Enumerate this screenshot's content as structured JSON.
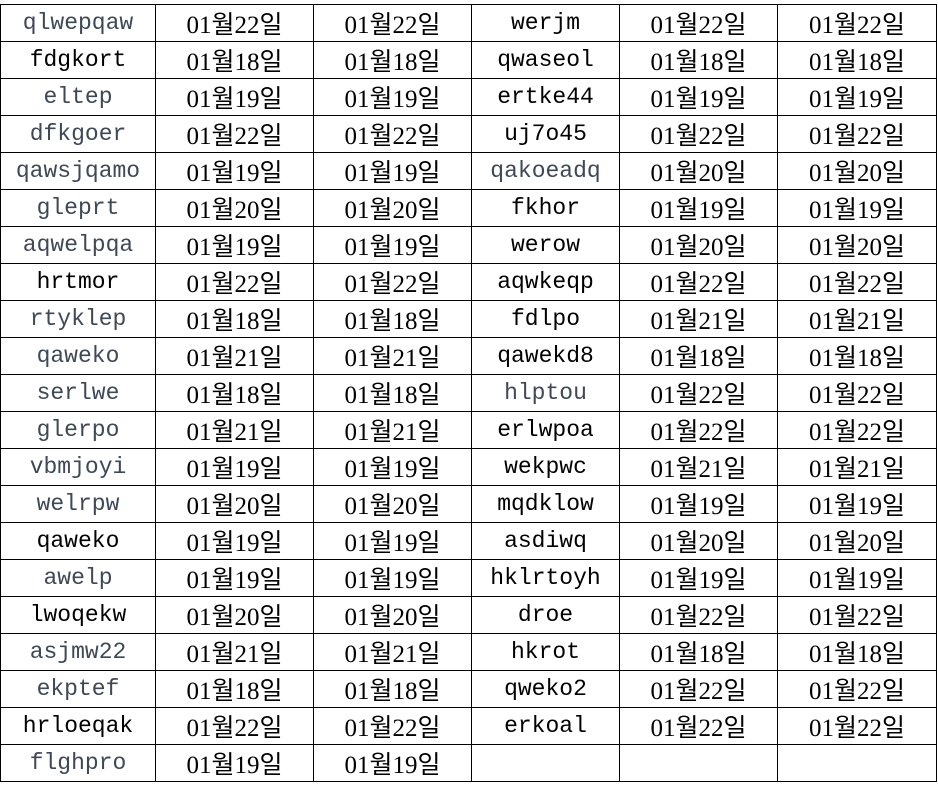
{
  "colors": {
    "name_gray": "#3e4856",
    "text": "#000000",
    "grid": "#000000"
  },
  "rows": [
    {
      "left": {
        "name": "qlwepqaw",
        "gray": true,
        "d1": "01월22일",
        "d2": "01월22일"
      },
      "right": {
        "name": "werjm",
        "gray": false,
        "d1": "01월22일",
        "d2": "01월22일"
      }
    },
    {
      "left": {
        "name": "fdgkort",
        "gray": false,
        "d1": "01월18일",
        "d2": "01월18일"
      },
      "right": {
        "name": "qwaseol",
        "gray": false,
        "d1": "01월18일",
        "d2": "01월18일"
      }
    },
    {
      "left": {
        "name": "eltep",
        "gray": true,
        "d1": "01월19일",
        "d2": "01월19일"
      },
      "right": {
        "name": "ertke44",
        "gray": false,
        "d1": "01월19일",
        "d2": "01월19일"
      }
    },
    {
      "left": {
        "name": "dfkgoer",
        "gray": true,
        "d1": "01월22일",
        "d2": "01월22일"
      },
      "right": {
        "name": "uj7o45",
        "gray": false,
        "d1": "01월22일",
        "d2": "01월22일"
      }
    },
    {
      "left": {
        "name": "qawsjqamo",
        "gray": true,
        "d1": "01월19일",
        "d2": "01월19일"
      },
      "right": {
        "name": "qakoeadq",
        "gray": true,
        "d1": "01월20일",
        "d2": "01월20일"
      }
    },
    {
      "left": {
        "name": "gleprt",
        "gray": true,
        "d1": "01월20일",
        "d2": "01월20일"
      },
      "right": {
        "name": "fkhor",
        "gray": false,
        "d1": "01월19일",
        "d2": "01월19일"
      }
    },
    {
      "left": {
        "name": "aqwelpqa",
        "gray": true,
        "d1": "01월19일",
        "d2": "01월19일"
      },
      "right": {
        "name": "werow",
        "gray": false,
        "d1": "01월20일",
        "d2": "01월20일"
      }
    },
    {
      "left": {
        "name": "hrtmor",
        "gray": false,
        "d1": "01월22일",
        "d2": "01월22일"
      },
      "right": {
        "name": "aqwkeqp",
        "gray": false,
        "d1": "01월22일",
        "d2": "01월22일"
      }
    },
    {
      "left": {
        "name": "rtyklep",
        "gray": true,
        "d1": "01월18일",
        "d2": "01월18일"
      },
      "right": {
        "name": "fdlpo",
        "gray": false,
        "d1": "01월21일",
        "d2": "01월21일"
      }
    },
    {
      "left": {
        "name": "qaweko",
        "gray": true,
        "d1": "01월21일",
        "d2": "01월21일"
      },
      "right": {
        "name": "qawekd8",
        "gray": false,
        "d1": "01월18일",
        "d2": "01월18일"
      }
    },
    {
      "left": {
        "name": "serlwe",
        "gray": true,
        "d1": "01월18일",
        "d2": "01월18일"
      },
      "right": {
        "name": "hlptou",
        "gray": true,
        "d1": "01월22일",
        "d2": "01월22일"
      }
    },
    {
      "left": {
        "name": "glerpo",
        "gray": true,
        "d1": "01월21일",
        "d2": "01월21일"
      },
      "right": {
        "name": "erlwpoa",
        "gray": false,
        "d1": "01월22일",
        "d2": "01월22일"
      }
    },
    {
      "left": {
        "name": "vbmjoyi",
        "gray": true,
        "d1": "01월19일",
        "d2": "01월19일"
      },
      "right": {
        "name": "wekpwc",
        "gray": false,
        "d1": "01월21일",
        "d2": "01월21일"
      }
    },
    {
      "left": {
        "name": "welrpw",
        "gray": true,
        "d1": "01월20일",
        "d2": "01월20일"
      },
      "right": {
        "name": "mqdklow",
        "gray": false,
        "d1": "01월19일",
        "d2": "01월19일"
      }
    },
    {
      "left": {
        "name": "qaweko",
        "gray": false,
        "d1": "01월19일",
        "d2": "01월19일"
      },
      "right": {
        "name": "asdiwq",
        "gray": false,
        "d1": "01월20일",
        "d2": "01월20일"
      }
    },
    {
      "left": {
        "name": "awelp",
        "gray": true,
        "d1": "01월19일",
        "d2": "01월19일"
      },
      "right": {
        "name": "hklrtoyh",
        "gray": false,
        "d1": "01월19일",
        "d2": "01월19일"
      }
    },
    {
      "left": {
        "name": "lwoqekw",
        "gray": false,
        "d1": "01월20일",
        "d2": "01월20일"
      },
      "right": {
        "name": "droe",
        "gray": false,
        "d1": "01월22일",
        "d2": "01월22일"
      }
    },
    {
      "left": {
        "name": "asjmw22",
        "gray": true,
        "d1": "01월21일",
        "d2": "01월21일"
      },
      "right": {
        "name": "hkrot",
        "gray": false,
        "d1": "01월18일",
        "d2": "01월18일"
      }
    },
    {
      "left": {
        "name": "ekptef",
        "gray": true,
        "d1": "01월18일",
        "d2": "01월18일"
      },
      "right": {
        "name": "qweko2",
        "gray": false,
        "d1": "01월22일",
        "d2": "01월22일"
      }
    },
    {
      "left": {
        "name": "hrloeqak",
        "gray": false,
        "d1": "01월22일",
        "d2": "01월22일"
      },
      "right": {
        "name": "erkoal",
        "gray": false,
        "d1": "01월22일",
        "d2": "01월22일"
      }
    },
    {
      "left": {
        "name": "flghpro",
        "gray": true,
        "d1": "01월19일",
        "d2": "01월19일"
      },
      "right": {
        "name": "",
        "gray": false,
        "d1": "",
        "d2": ""
      }
    }
  ]
}
